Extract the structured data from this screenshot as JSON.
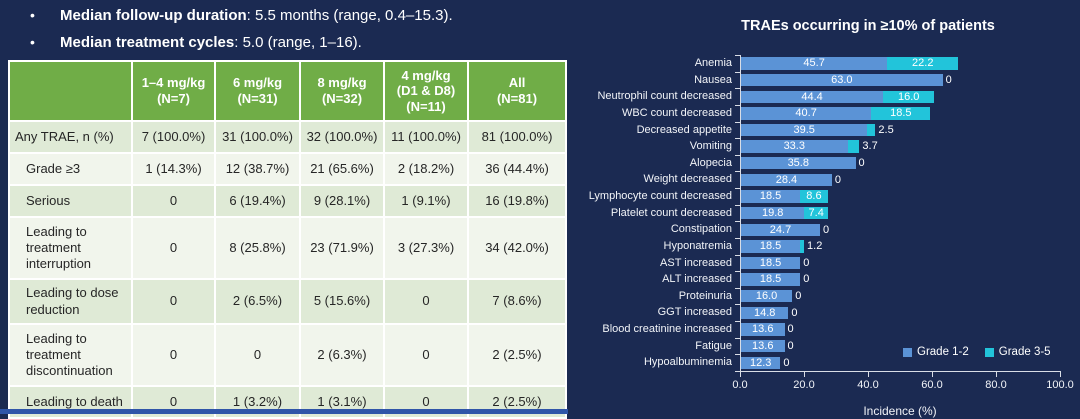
{
  "colors": {
    "background": "#1b2a52",
    "table_header_green": "#70ad47",
    "table_row_sage": "#dfead6",
    "table_row_light": "#f1f5ec",
    "bar_blue": "#5b93d6",
    "bar_cyan": "#22c4da",
    "bottom_rule_blue": "#2f55a8"
  },
  "bullets": [
    {
      "bold": "Median follow-up duration",
      "rest": ": 5.5 months (range, 0.4–15.3)."
    },
    {
      "bold": "Median treatment cycles",
      "rest": ": 5.0 (range, 1–16)."
    }
  ],
  "table": {
    "header": [
      "",
      "1–4 mg/kg\n(N=7)",
      "6 mg/kg\n(N=31)",
      "8 mg/kg\n(N=32)",
      "4 mg/kg\n(D1 & D8)\n(N=11)",
      "All\n(N=81)"
    ],
    "rows": [
      {
        "label": "Any TRAE, n (%)",
        "indent": false,
        "values": [
          "7 (100.0%)",
          "31 (100.0%)",
          "32 (100.0%)",
          "11 (100.0%)",
          "81 (100.0%)"
        ]
      },
      {
        "label": "Grade ≥3",
        "indent": true,
        "values": [
          "1 (14.3%)",
          "12 (38.7%)",
          "21 (65.6%)",
          "2 (18.2%)",
          "36 (44.4%)"
        ]
      },
      {
        "label": "Serious",
        "indent": true,
        "values": [
          "0",
          "6 (19.4%)",
          "9 (28.1%)",
          "1 (9.1%)",
          "16 (19.8%)"
        ]
      },
      {
        "label": "Leading to treatment interruption",
        "indent": true,
        "values": [
          "0",
          "8 (25.8%)",
          "23 (71.9%)",
          "3 (27.3%)",
          "34 (42.0%)"
        ]
      },
      {
        "label": "Leading to dose reduction",
        "indent": true,
        "values": [
          "0",
          "2 (6.5%)",
          "5 (15.6%)",
          "0",
          "7 (8.6%)"
        ]
      },
      {
        "label": "Leading to treatment discontinuation",
        "indent": true,
        "values": [
          "0",
          "0",
          "2 (6.3%)",
          "0",
          "2 (2.5%)"
        ]
      },
      {
        "label": "Leading to death",
        "indent": true,
        "values": [
          "0",
          "1 (3.2%)",
          "1 (3.1%)",
          "0",
          "2 (2.5%)"
        ]
      }
    ]
  },
  "chart_data": {
    "type": "bar",
    "orientation": "horizontal",
    "title": "TRAEs occurring in ≥10% of patients",
    "xlabel": "Incidence  (%)",
    "xlim": [
      0,
      100
    ],
    "xticks": [
      "0.0",
      "20.0",
      "40.0",
      "60.0",
      "80.0",
      "100.0"
    ],
    "legend_position": "right-bottom",
    "grid": false,
    "categories": [
      "Anemia",
      "Nausea",
      "Neutrophil count decreased",
      "WBC count decreased",
      "Decreased appetite",
      "Vomiting",
      "Alopecia",
      "Weight decreased",
      "Lymphocyte count decreased",
      "Platelet count decreased",
      "Constipation",
      "Hyponatremia",
      "AST increased",
      "ALT increased",
      "Proteinuria",
      "GGT increased",
      "Blood creatinine increased",
      "Fatigue",
      "Hypoalbuminemia"
    ],
    "series": [
      {
        "name": "Grade 1-2",
        "color": "#5b93d6",
        "values": [
          45.7,
          63.0,
          44.4,
          40.7,
          39.5,
          33.3,
          35.8,
          28.4,
          18.5,
          19.8,
          24.7,
          18.5,
          18.5,
          18.5,
          16.0,
          14.8,
          13.6,
          13.6,
          12.3
        ],
        "labels": [
          "45.7",
          "63.0",
          "44.4",
          "40.7",
          "39.5",
          "33.3",
          "35.8",
          "28.4",
          "18.5",
          "19.8",
          "24.7",
          "18.5",
          "18.5",
          "18.5",
          "16.0",
          "14.8",
          "13.6",
          "13.6",
          "12.3"
        ]
      },
      {
        "name": "Grade 3-5",
        "color": "#22c4da",
        "values": [
          22.2,
          0,
          16.0,
          18.5,
          2.5,
          3.7,
          0,
          0,
          8.6,
          7.4,
          0,
          1.2,
          0,
          0,
          0,
          0,
          0,
          0,
          0
        ],
        "labels": [
          "22.2",
          "0",
          "16.0",
          "18.5",
          "2.5",
          "3.7",
          "0",
          "0",
          "8.6",
          "7.4",
          "0",
          "1.2",
          "0",
          "0",
          "0",
          "0",
          "0",
          "0",
          "0"
        ]
      }
    ]
  }
}
